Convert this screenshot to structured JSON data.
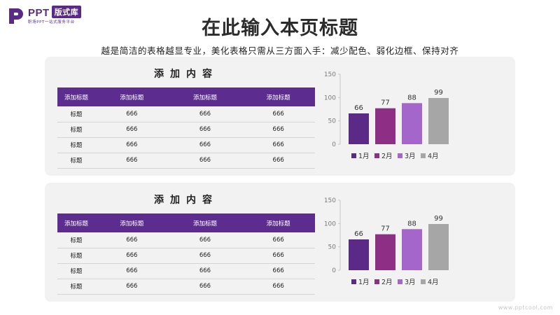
{
  "logo": {
    "brand": "PPT",
    "tag": "版式库",
    "tagline": "职场PPT一站式服务平台"
  },
  "page": {
    "title": "在此输入本页标题",
    "subtitle": "越是简洁的表格越显专业，美化表格只需从三方面入手：减少配色、弱化边框、保持对齐"
  },
  "panels": [
    {
      "table": {
        "title": "添加内容",
        "headers": [
          "添加标题",
          "添加标题",
          "添加标题",
          "添加标题"
        ],
        "rows": [
          [
            "标题",
            "666",
            "666",
            "666"
          ],
          [
            "标题",
            "666",
            "666",
            "666"
          ],
          [
            "标题",
            "666",
            "666",
            "666"
          ],
          [
            "标题",
            "666",
            "666",
            "666"
          ]
        ]
      }
    },
    {
      "table": {
        "title": "添加内容",
        "headers": [
          "添加标题",
          "添加标题",
          "添加标题",
          "添加标题"
        ],
        "rows": [
          [
            "标题",
            "666",
            "666",
            "666"
          ],
          [
            "标题",
            "666",
            "666",
            "666"
          ],
          [
            "标题",
            "666",
            "666",
            "666"
          ],
          [
            "标题",
            "666",
            "666",
            "666"
          ]
        ]
      }
    }
  ],
  "chart_data": [
    {
      "type": "bar",
      "categories": [
        "1月",
        "2月",
        "3月",
        "4月"
      ],
      "values": [
        66,
        77,
        88,
        99
      ],
      "colors": [
        "#5b2a86",
        "#8e2f86",
        "#a566cc",
        "#a6a6a6"
      ],
      "ylim": [
        0,
        150
      ],
      "yticks": [
        0,
        50,
        100,
        150
      ],
      "legend": "bottom",
      "grid": false
    },
    {
      "type": "bar",
      "categories": [
        "1月",
        "2月",
        "3月",
        "4月"
      ],
      "values": [
        66,
        77,
        88,
        99
      ],
      "colors": [
        "#5b2a86",
        "#8e2f86",
        "#a566cc",
        "#a6a6a6"
      ],
      "ylim": [
        0,
        150
      ],
      "yticks": [
        0,
        50,
        100,
        150
      ],
      "legend": "bottom",
      "grid": false
    }
  ],
  "footer": {
    "watermark": "www.pptcool.com"
  }
}
